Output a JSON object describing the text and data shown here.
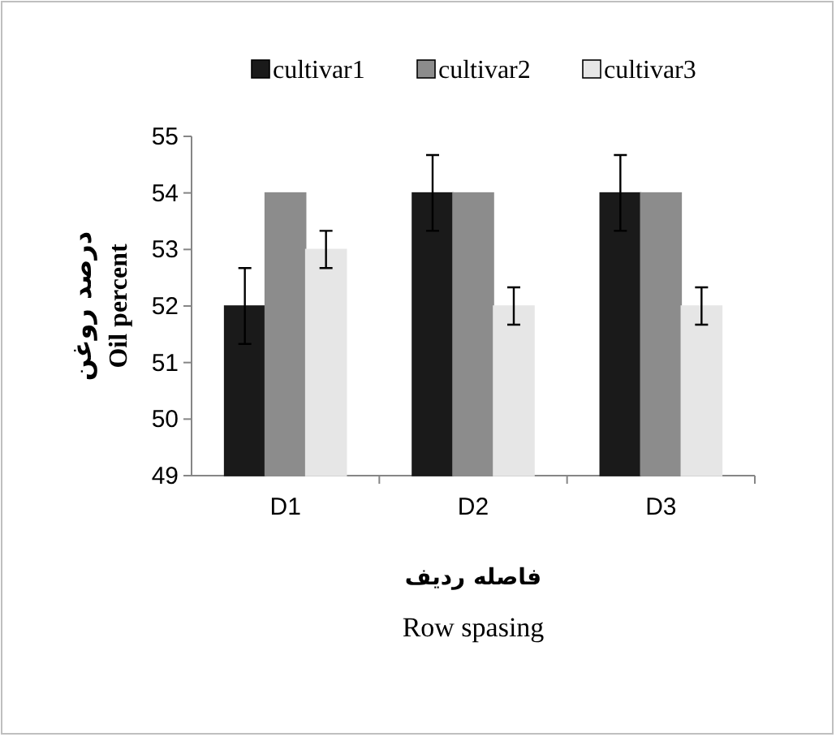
{
  "chart_data": {
    "type": "bar",
    "categories": [
      "D1",
      "D2",
      "D3"
    ],
    "series": [
      {
        "name": "cultivar1",
        "color": "#1a1a1a",
        "values": [
          52,
          54,
          54
        ],
        "errors": [
          0.67,
          0.67,
          0.67
        ]
      },
      {
        "name": "cultivar2",
        "color": "#8c8c8c",
        "values": [
          54,
          54,
          54
        ],
        "errors": [
          null,
          null,
          null
        ]
      },
      {
        "name": "cultivar3",
        "color": "#e6e6e6",
        "values": [
          53,
          52,
          52
        ],
        "errors": [
          0.33,
          0.33,
          0.33
        ]
      }
    ],
    "ylim": [
      49,
      55
    ],
    "yticks": [
      49,
      50,
      51,
      52,
      53,
      54,
      55
    ],
    "ylabel": "درصد روغن\nOil percent",
    "xlabel": "فاصله ردیف\nRow spasing",
    "legend": "top",
    "grid": false
  }
}
